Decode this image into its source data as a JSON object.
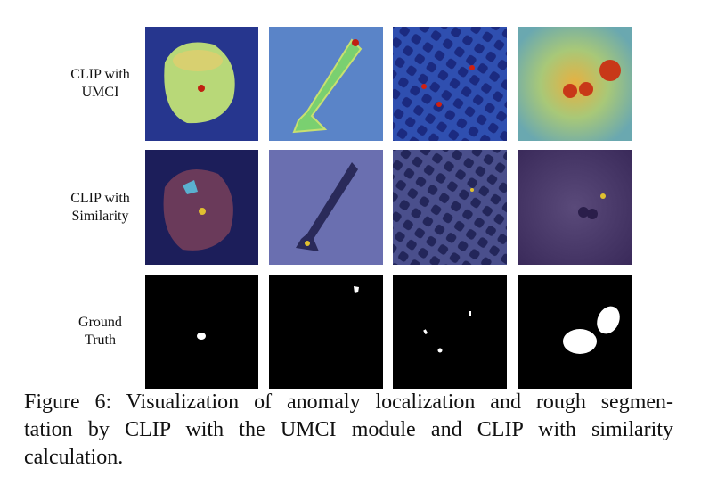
{
  "figure": {
    "rows": [
      {
        "label": [
          "CLIP with",
          "UMCI"
        ]
      },
      {
        "label": [
          "CLIP with",
          "Similarity"
        ]
      },
      {
        "label": [
          "Ground",
          "Truth"
        ]
      }
    ],
    "caption": [
      "Figure 6: Visualization of anomaly localization and rough segmen-",
      "tation by CLIP with the UMCI module and CLIP with similarity",
      "calculation."
    ]
  }
}
